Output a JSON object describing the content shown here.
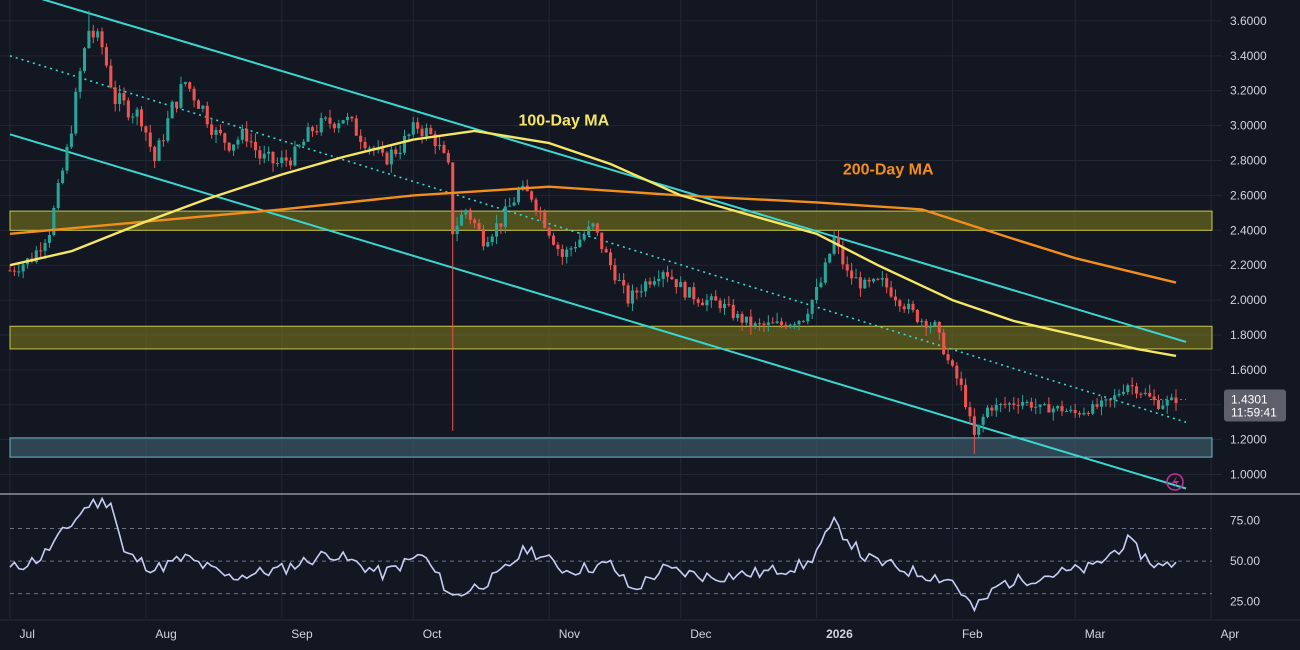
{
  "colors": {
    "background": "#131722",
    "grid": "#222733",
    "up": "#26a69a",
    "down": "#ef5350",
    "ma100": "#f5e663",
    "ma200": "#f28e1c",
    "channel": "#3ad6d0",
    "zone_yellow": "#6b6a1e",
    "zone_blue": "#3d5a68",
    "rsi_line": "#c5cdf5",
    "rsi_band": "#6b7385"
  },
  "icons": {
    "alert": "lightning-icon"
  },
  "chart_data": [
    {
      "type": "candlestick",
      "panel": "price",
      "ylim": [
        0.9,
        3.72
      ],
      "yticks": [
        "1.0000",
        "1.2000",
        "1.4000",
        "1.6000",
        "1.8000",
        "2.0000",
        "2.2000",
        "2.4000",
        "2.6000",
        "2.8000",
        "3.0000",
        "3.2000",
        "3.4000",
        "3.6000"
      ],
      "x_months": [
        "Jul",
        "Aug",
        "Sep",
        "Oct",
        "Nov",
        "Dec",
        "2026",
        "Feb",
        "Mar",
        "Apr"
      ],
      "date_range": [
        "2025-07-01",
        "2026-03-24"
      ],
      "path": [
        [
          "2025-07-01",
          2.17
        ],
        [
          "2025-07-06",
          2.24
        ],
        [
          "2025-07-10",
          2.4
        ],
        [
          "2025-07-14",
          2.85
        ],
        [
          "2025-07-17",
          3.3
        ],
        [
          "2025-07-19",
          3.55
        ],
        [
          "2025-07-22",
          3.45
        ],
        [
          "2025-07-25",
          3.15
        ],
        [
          "2025-07-31",
          3.05
        ],
        [
          "2025-08-03",
          2.8
        ],
        [
          "2025-08-07",
          3.1
        ],
        [
          "2025-08-10",
          3.25
        ],
        [
          "2025-08-14",
          3.1
        ],
        [
          "2025-08-17",
          2.95
        ],
        [
          "2025-08-20",
          2.9
        ],
        [
          "2025-08-24",
          2.95
        ],
        [
          "2025-08-27",
          2.82
        ],
        [
          "2025-08-31",
          2.78
        ],
        [
          "2025-09-04",
          2.83
        ],
        [
          "2025-09-08",
          2.98
        ],
        [
          "2025-09-12",
          3.02
        ],
        [
          "2025-09-15",
          3.05
        ],
        [
          "2025-09-20",
          2.92
        ],
        [
          "2025-09-24",
          2.8
        ],
        [
          "2025-09-28",
          2.88
        ],
        [
          "2025-10-02",
          3.0
        ],
        [
          "2025-10-06",
          2.92
        ],
        [
          "2025-10-09",
          2.75
        ],
        [
          "2025-10-10",
          2.4
        ],
        [
          "2025-10-13",
          2.52
        ],
        [
          "2025-10-17",
          2.35
        ],
        [
          "2025-10-21",
          2.45
        ],
        [
          "2025-10-25",
          2.62
        ],
        [
          "2025-10-28",
          2.6
        ],
        [
          "2025-11-01",
          2.4
        ],
        [
          "2025-11-04",
          2.25
        ],
        [
          "2025-11-08",
          2.35
        ],
        [
          "2025-11-11",
          2.42
        ],
        [
          "2025-11-15",
          2.2
        ],
        [
          "2025-11-19",
          2.0
        ],
        [
          "2025-11-23",
          2.1
        ],
        [
          "2025-11-27",
          2.18
        ],
        [
          "2025-12-02",
          2.05
        ],
        [
          "2025-12-06",
          2.0
        ],
        [
          "2025-12-10",
          1.98
        ],
        [
          "2025-12-14",
          1.9
        ],
        [
          "2025-12-18",
          1.85
        ],
        [
          "2025-12-24",
          1.86
        ],
        [
          "2025-12-29",
          1.9
        ],
        [
          "2026-01-02",
          2.1
        ],
        [
          "2026-01-05",
          2.35
        ],
        [
          "2026-01-08",
          2.15
        ],
        [
          "2026-01-12",
          2.08
        ],
        [
          "2026-01-16",
          2.1
        ],
        [
          "2026-01-20",
          2.0
        ],
        [
          "2026-01-24",
          1.9
        ],
        [
          "2026-01-28",
          1.85
        ],
        [
          "2026-01-31",
          1.65
        ],
        [
          "2026-02-03",
          1.5
        ],
        [
          "2026-02-06",
          1.22
        ],
        [
          "2026-02-09",
          1.38
        ],
        [
          "2026-02-13",
          1.4
        ],
        [
          "2026-02-17",
          1.42
        ],
        [
          "2026-02-21",
          1.38
        ],
        [
          "2026-02-25",
          1.38
        ],
        [
          "2026-03-01",
          1.35
        ],
        [
          "2026-03-05",
          1.38
        ],
        [
          "2026-03-09",
          1.42
        ],
        [
          "2026-03-13",
          1.52
        ],
        [
          "2026-03-17",
          1.46
        ],
        [
          "2026-03-20",
          1.4
        ],
        [
          "2026-03-24",
          1.43
        ]
      ],
      "spikes": [
        {
          "date": "2025-10-10",
          "low": 1.25
        },
        {
          "date": "2026-02-06",
          "low": 1.12
        },
        {
          "date": "2025-07-19",
          "high": 3.66
        }
      ],
      "ma100": [
        [
          "2025-07-01",
          2.2
        ],
        [
          "2025-07-15",
          2.28
        ],
        [
          "2025-08-01",
          2.45
        ],
        [
          "2025-08-15",
          2.58
        ],
        [
          "2025-09-01",
          2.72
        ],
        [
          "2025-09-15",
          2.82
        ],
        [
          "2025-10-01",
          2.92
        ],
        [
          "2025-10-15",
          2.97
        ],
        [
          "2025-11-01",
          2.9
        ],
        [
          "2025-11-15",
          2.78
        ],
        [
          "2025-12-01",
          2.6
        ],
        [
          "2025-12-15",
          2.5
        ],
        [
          "2026-01-01",
          2.38
        ],
        [
          "2026-01-15",
          2.2
        ],
        [
          "2026-02-01",
          2.0
        ],
        [
          "2026-02-15",
          1.88
        ],
        [
          "2026-03-01",
          1.8
        ],
        [
          "2026-03-15",
          1.72
        ],
        [
          "2026-03-24",
          1.68
        ]
      ],
      "ma200": [
        [
          "2025-07-01",
          2.38
        ],
        [
          "2025-08-01",
          2.45
        ],
        [
          "2025-09-01",
          2.52
        ],
        [
          "2025-10-01",
          2.6
        ],
        [
          "2025-11-01",
          2.65
        ],
        [
          "2025-12-01",
          2.6
        ],
        [
          "2026-01-01",
          2.56
        ],
        [
          "2026-01-25",
          2.52
        ],
        [
          "2026-02-15",
          2.35
        ],
        [
          "2026-03-01",
          2.24
        ],
        [
          "2026-03-24",
          2.1
        ]
      ],
      "channel_upper": [
        [
          "2025-07-01",
          3.78
        ],
        [
          "2026-03-24",
          1.76
        ]
      ],
      "channel_lower": [
        [
          "2025-07-01",
          2.95
        ],
        [
          "2026-03-24",
          0.92
        ]
      ],
      "channel_mid": [
        [
          "2025-07-01",
          3.4
        ],
        [
          "2026-03-24",
          1.3
        ]
      ],
      "zones": [
        {
          "from": 2.4,
          "to": 2.51,
          "color": "yellow"
        },
        {
          "from": 1.72,
          "to": 1.85,
          "color": "yellow"
        },
        {
          "from": 1.1,
          "to": 1.21,
          "color": "blue"
        }
      ],
      "annotations": [
        {
          "text": "100-Day MA",
          "x": "2025-10-25",
          "y": 3.0,
          "color": "ma100"
        },
        {
          "text": "200-Day MA",
          "x": "2026-01-07",
          "y": 2.72,
          "color": "ma200"
        }
      ],
      "last_price": "1.4301",
      "countdown": "11:59:41"
    },
    {
      "type": "line",
      "panel": "rsi",
      "ylim": [
        15,
        90
      ],
      "yticks": [
        "25.00",
        "50.00",
        "75.00"
      ],
      "bands": [
        30,
        50,
        70
      ],
      "series": [
        {
          "values": [
            [
              "2025-07-01",
              45
            ],
            [
              "2025-07-08",
              52
            ],
            [
              "2025-07-14",
              70
            ],
            [
              "2025-07-19",
              85
            ],
            [
              "2025-07-24",
              87
            ],
            [
              "2025-07-27",
              55
            ],
            [
              "2025-08-03",
              45
            ],
            [
              "2025-08-10",
              52
            ],
            [
              "2025-08-20",
              40
            ],
            [
              "2025-09-01",
              45
            ],
            [
              "2025-09-12",
              55
            ],
            [
              "2025-09-24",
              42
            ],
            [
              "2025-10-03",
              54
            ],
            [
              "2025-10-10",
              28
            ],
            [
              "2025-10-20",
              40
            ],
            [
              "2025-10-27",
              58
            ],
            [
              "2025-11-05",
              44
            ],
            [
              "2025-11-15",
              48
            ],
            [
              "2025-11-20",
              32
            ],
            [
              "2025-11-27",
              45
            ],
            [
              "2025-12-08",
              40
            ],
            [
              "2025-12-20",
              43
            ],
            [
              "2025-12-30",
              48
            ],
            [
              "2026-01-05",
              73
            ],
            [
              "2026-01-12",
              52
            ],
            [
              "2026-01-22",
              44
            ],
            [
              "2026-02-01",
              38
            ],
            [
              "2026-02-06",
              20
            ],
            [
              "2026-02-12",
              36
            ],
            [
              "2026-02-24",
              42
            ],
            [
              "2026-03-05",
              46
            ],
            [
              "2026-03-13",
              62
            ],
            [
              "2026-03-18",
              50
            ],
            [
              "2026-03-21",
              46
            ],
            [
              "2026-03-24",
              50
            ]
          ]
        }
      ]
    }
  ]
}
